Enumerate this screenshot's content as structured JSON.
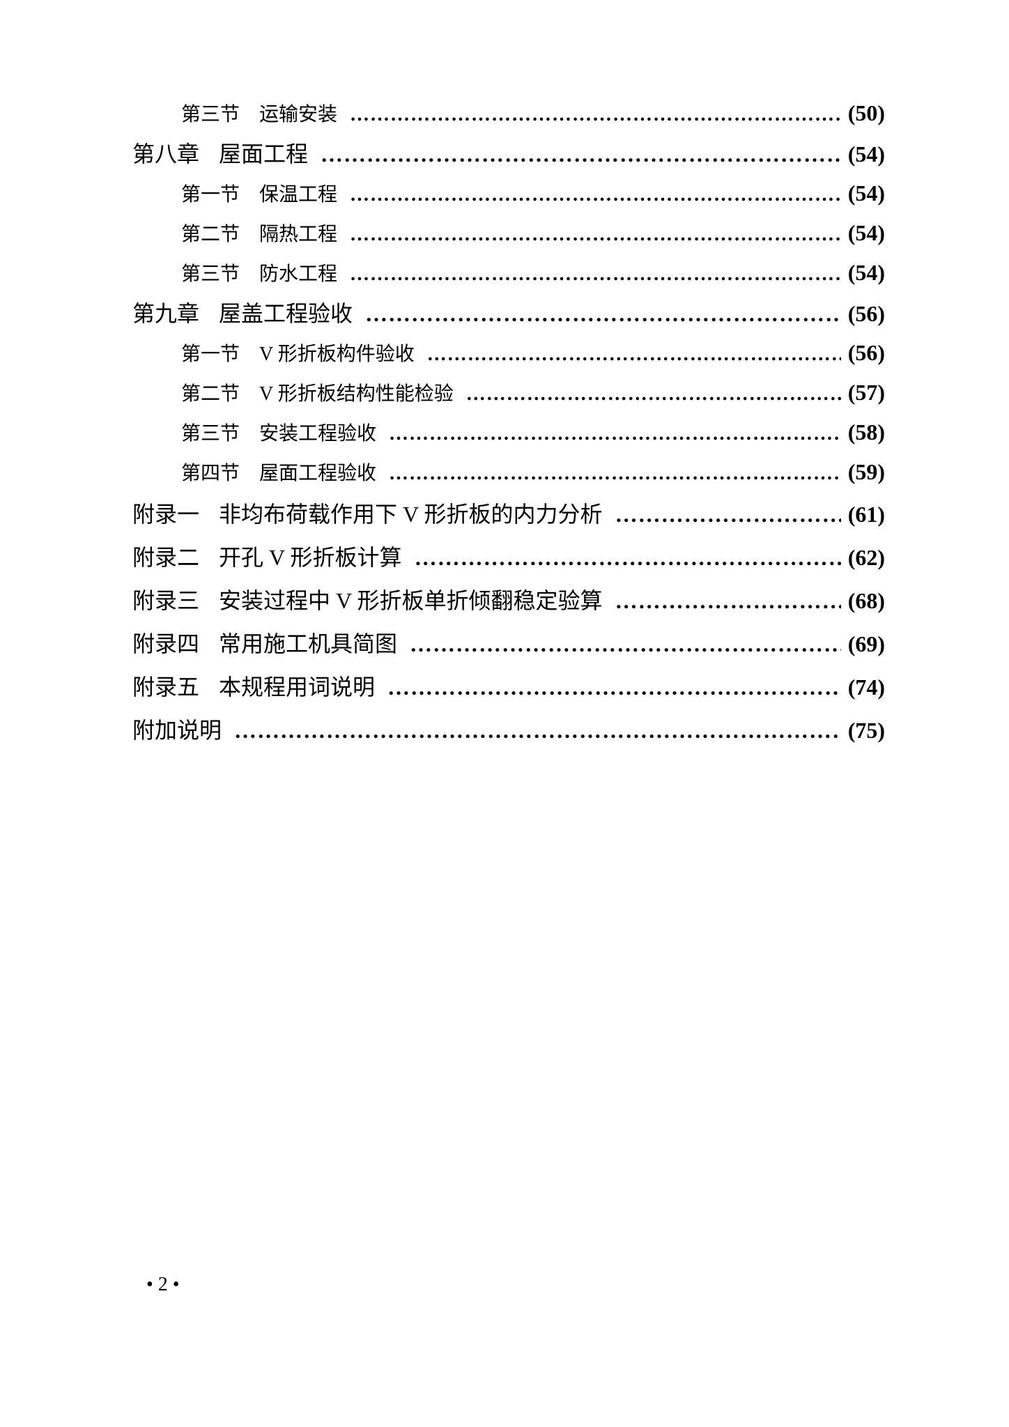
{
  "colors": {
    "background": "#ffffff",
    "text": "#000000"
  },
  "typography": {
    "section_fontsize": 28,
    "chapter_fontsize": 32,
    "appendix_fontsize": 32,
    "page_fontsize": 32,
    "font_family": "SimSun"
  },
  "entries": [
    {
      "level": "section",
      "label": "第三节",
      "title": "运输安装",
      "page": "(50)"
    },
    {
      "level": "chapter",
      "label": "第八章",
      "title": "屋面工程",
      "page": "(54)"
    },
    {
      "level": "section",
      "label": "第一节",
      "title": "保温工程",
      "page": "(54)"
    },
    {
      "level": "section",
      "label": "第二节",
      "title": "隔热工程",
      "page": "(54)"
    },
    {
      "level": "section",
      "label": "第三节",
      "title": "防水工程",
      "page": "(54)"
    },
    {
      "level": "chapter",
      "label": "第九章",
      "title": "屋盖工程验收",
      "page": "(56)"
    },
    {
      "level": "section",
      "label": "第一节",
      "title": "V 形折板构件验收",
      "page": "(56)"
    },
    {
      "level": "section",
      "label": "第二节",
      "title": "V 形折板结构性能检验",
      "page": "(57)"
    },
    {
      "level": "section",
      "label": "第三节",
      "title": "安装工程验收",
      "page": "(58)"
    },
    {
      "level": "section",
      "label": "第四节",
      "title": "屋面工程验收",
      "page": "(59)"
    },
    {
      "level": "appendix",
      "label": "附录一",
      "title": "非均布荷载作用下 V 形折板的内力分析",
      "page": "(61)"
    },
    {
      "level": "appendix",
      "label": "附录二",
      "title": "开孔 V 形折板计算",
      "page": "(62)"
    },
    {
      "level": "appendix",
      "label": "附录三",
      "title": "安装过程中 V 形折板单折倾翻稳定验算",
      "page": "(68)"
    },
    {
      "level": "appendix",
      "label": "附录四",
      "title": "常用施工机具简图",
      "page": "(69)"
    },
    {
      "level": "appendix",
      "label": "附录五",
      "title": "本规程用词说明",
      "page": "(74)"
    },
    {
      "level": "appendix",
      "label": "附加说明",
      "title": "",
      "page": "(75)"
    }
  ],
  "page_number": "• 2 •"
}
